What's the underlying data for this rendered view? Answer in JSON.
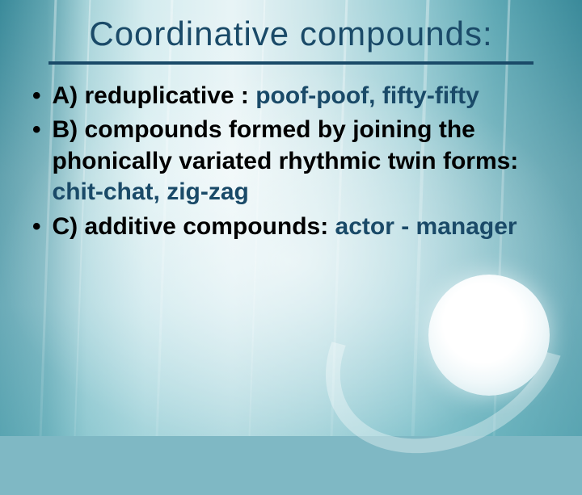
{
  "title": "Coordinative compounds:",
  "colors": {
    "title_color": "#1a4a68",
    "underline_color": "#1a4a68",
    "body_text": "#000000",
    "highlight": "#1a4a68",
    "bg_gradient": [
      "#3a8a9a",
      "#5fa4b0",
      "#a8d4da",
      "#d4ecef",
      "#e8f4f6",
      "#c8e4e8",
      "#98ccd4",
      "#5ea8b4",
      "#3a8a9a"
    ]
  },
  "typography": {
    "title_font": "Impact",
    "title_fontsize_pt": 32,
    "body_font": "Arial",
    "body_fontsize_pt": 23,
    "body_weight": "bold"
  },
  "bullets": [
    {
      "label": "A",
      "lead": "A) reduplicative : ",
      "highlight": "poof-poof, fifty-fifty"
    },
    {
      "label": "B",
      "lead": "B) compounds formed by joining the phonically variated rhythmic twin forms: ",
      "highlight": "chit-chat, zig-zag"
    },
    {
      "label": "C",
      "lead": "C) additive compounds: ",
      "highlight": "actor - manager"
    }
  ]
}
